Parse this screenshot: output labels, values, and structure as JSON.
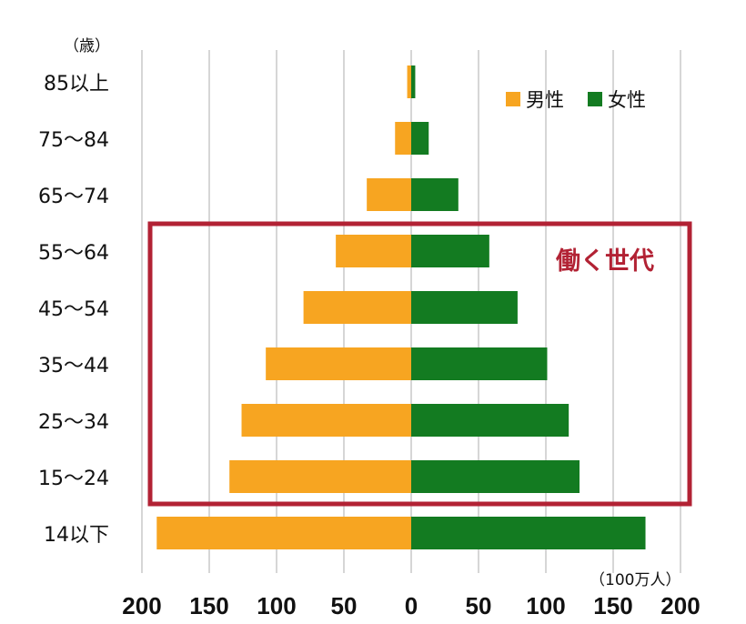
{
  "chart_data": {
    "type": "bar",
    "orientation": "horizontal-population-pyramid",
    "categories": [
      "85以上",
      "75〜84",
      "65〜74",
      "55〜64",
      "45〜54",
      "35〜44",
      "25〜34",
      "15〜24",
      "14以下"
    ],
    "series": [
      {
        "name": "男性",
        "color": "#f7a521",
        "values": [
          3,
          12,
          33,
          56,
          80,
          108,
          126,
          135,
          189
        ]
      },
      {
        "name": "女性",
        "color": "#137b21",
        "values": [
          3,
          13,
          35,
          58,
          79,
          101,
          117,
          125,
          174
        ]
      }
    ],
    "x_ticks": [
      "200",
      "150",
      "100",
      "50",
      "0",
      "50",
      "100",
      "150",
      "200"
    ],
    "xlim": [
      -200,
      200
    ],
    "y_unit_label": "（歳）",
    "x_unit_label": "（100万人）",
    "grid": true,
    "legend_position": "top-right",
    "highlight": {
      "label": "働く世代",
      "color": "#b22234",
      "from_category": "55〜64",
      "to_category": "15〜24"
    }
  }
}
